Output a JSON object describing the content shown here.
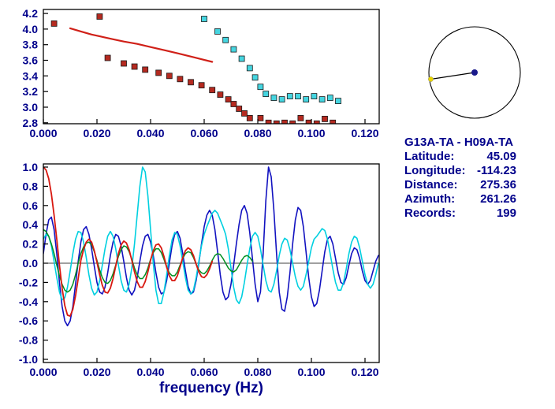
{
  "colors": {
    "background": "#ffffff",
    "frame": "#000000",
    "text": "#00008b"
  },
  "station_info": {
    "title": "G13A-TA - H09A-TA",
    "rows": [
      {
        "label": "Latitude:",
        "value": "45.09"
      },
      {
        "label": "Longitude:",
        "value": "-114.23"
      },
      {
        "label": "Distance:",
        "value": "275.36"
      },
      {
        "label": "Azimuth:",
        "value": "261.26"
      },
      {
        "label": "Records:",
        "value": "199"
      }
    ]
  },
  "azimuth_diagram": {
    "azimuth_deg": 261.26,
    "circle_color": "#000000",
    "center_dot_color": "#1a1a8c",
    "edge_dot_color": "#e8d400"
  },
  "chart_data": [
    {
      "id": "phase-velocity-dispersion",
      "type": "scatter",
      "title": "",
      "xlabel": "",
      "ylabel": "",
      "xlim": [
        0,
        0.1253
      ],
      "ylim": [
        2.788,
        4.251
      ],
      "xticks": [
        0,
        0.02,
        0.04,
        0.06,
        0.08,
        0.1,
        0.12
      ],
      "xtick_labels": [
        "0.000",
        "0.020",
        "0.040",
        "0.060",
        "0.080",
        "0.100",
        "0.120"
      ],
      "yticks": [
        2.8,
        3.0,
        3.2,
        3.4,
        3.6,
        3.8,
        4.0,
        4.2
      ],
      "ytick_labels": [
        "2.8",
        "3.0",
        "3.2",
        "3.4",
        "3.6",
        "3.8",
        "4.0",
        "4.2"
      ],
      "series": [
        {
          "name": "red-curve",
          "style": "line",
          "color": "#d02018",
          "width": 2.2,
          "points": [
            [
              0.01,
              4.01
            ],
            [
              0.014,
              3.97
            ],
            [
              0.018,
              3.93
            ],
            [
              0.022,
              3.9
            ],
            [
              0.026,
              3.87
            ],
            [
              0.03,
              3.84
            ],
            [
              0.035,
              3.81
            ],
            [
              0.04,
              3.77
            ],
            [
              0.045,
              3.73
            ],
            [
              0.05,
              3.69
            ],
            [
              0.056,
              3.64
            ],
            [
              0.063,
              3.58
            ]
          ]
        },
        {
          "name": "red-squares",
          "style": "scatter",
          "color": "#b52a20",
          "points": [
            [
              0.004,
              4.07
            ],
            [
              0.021,
              4.16
            ],
            [
              0.024,
              3.63
            ],
            [
              0.03,
              3.56
            ],
            [
              0.034,
              3.52
            ],
            [
              0.038,
              3.48
            ],
            [
              0.043,
              3.44
            ],
            [
              0.047,
              3.4
            ],
            [
              0.051,
              3.36
            ],
            [
              0.055,
              3.32
            ],
            [
              0.059,
              3.28
            ],
            [
              0.063,
              3.22
            ],
            [
              0.066,
              3.16
            ],
            [
              0.069,
              3.1
            ],
            [
              0.071,
              3.04
            ],
            [
              0.073,
              2.98
            ],
            [
              0.075,
              2.92
            ],
            [
              0.077,
              2.86
            ],
            [
              0.078,
              2.73
            ],
            [
              0.081,
              2.86
            ],
            [
              0.084,
              2.8
            ],
            [
              0.087,
              2.79
            ],
            [
              0.09,
              2.8
            ],
            [
              0.093,
              2.79
            ],
            [
              0.096,
              2.86
            ],
            [
              0.099,
              2.8
            ],
            [
              0.102,
              2.79
            ],
            [
              0.105,
              2.85
            ],
            [
              0.108,
              2.8
            ]
          ]
        },
        {
          "name": "cyan-squares",
          "style": "scatter",
          "color": "#45d5e0",
          "points": [
            [
              0.06,
              4.13
            ],
            [
              0.065,
              3.97
            ],
            [
              0.068,
              3.86
            ],
            [
              0.071,
              3.74
            ],
            [
              0.074,
              3.62
            ],
            [
              0.077,
              3.5
            ],
            [
              0.079,
              3.38
            ],
            [
              0.081,
              3.26
            ],
            [
              0.083,
              3.17
            ],
            [
              0.086,
              3.12
            ],
            [
              0.089,
              3.1
            ],
            [
              0.092,
              3.14
            ],
            [
              0.095,
              3.14
            ],
            [
              0.098,
              3.1
            ],
            [
              0.101,
              3.14
            ],
            [
              0.104,
              3.1
            ],
            [
              0.107,
              3.12
            ],
            [
              0.11,
              3.08
            ]
          ]
        }
      ]
    },
    {
      "id": "normalized-cross-spectra",
      "type": "line",
      "title": "",
      "xlabel": "frequency (Hz)",
      "ylabel": "",
      "zero_line": true,
      "xlim": [
        0,
        0.1253
      ],
      "ylim": [
        -1.033,
        1.033
      ],
      "xticks": [
        0,
        0.02,
        0.04,
        0.06,
        0.08,
        0.1,
        0.12
      ],
      "xtick_labels": [
        "0.000",
        "0.020",
        "0.040",
        "0.060",
        "0.080",
        "0.100",
        "0.120"
      ],
      "yticks": [
        1.0,
        0.8,
        0.6,
        0.4,
        0.2,
        0.0,
        -0.2,
        -0.4,
        -0.6,
        -0.8,
        -1.0
      ],
      "ytick_labels": [
        "1.0",
        "0.8",
        "0.6",
        "0.4",
        "0.2",
        "0.0",
        "-0.2",
        "-0.4",
        "-0.6",
        "-0.8",
        "-1.0"
      ],
      "series": [
        {
          "name": "navy-trace",
          "style": "line",
          "color": "#1212c0",
          "width": 1.6,
          "x_start": 0,
          "dx": 0.001,
          "values": [
            0.1,
            0.3,
            0.45,
            0.48,
            0.35,
            0.1,
            -0.2,
            -0.45,
            -0.6,
            -0.65,
            -0.6,
            -0.45,
            -0.22,
            0.02,
            0.22,
            0.35,
            0.38,
            0.3,
            0.15,
            -0.03,
            -0.2,
            -0.3,
            -0.32,
            -0.25,
            -0.1,
            0.08,
            0.22,
            0.3,
            0.28,
            0.18,
            0.02,
            -0.15,
            -0.28,
            -0.33,
            -0.28,
            -0.15,
            0.02,
            0.18,
            0.28,
            0.3,
            0.22,
            0.08,
            -0.1,
            -0.25,
            -0.32,
            -0.3,
            -0.18,
            0.0,
            0.18,
            0.3,
            0.33,
            0.26,
            0.1,
            -0.08,
            -0.24,
            -0.32,
            -0.3,
            -0.18,
            0.0,
            0.2,
            0.38,
            0.5,
            0.55,
            0.5,
            0.35,
            0.12,
            -0.12,
            -0.3,
            -0.38,
            -0.35,
            -0.22,
            -0.02,
            0.2,
            0.4,
            0.55,
            0.6,
            0.52,
            0.32,
            0.05,
            -0.22,
            -0.4,
            -0.3,
            0.1,
            0.65,
            1.0,
            0.9,
            0.55,
            0.1,
            -0.3,
            -0.48,
            -0.5,
            -0.35,
            -0.1,
            0.2,
            0.45,
            0.58,
            0.55,
            0.38,
            0.12,
            -0.15,
            -0.35,
            -0.45,
            -0.42,
            -0.28,
            -0.08,
            0.12,
            0.25,
            0.28,
            0.2,
            0.05,
            -0.1,
            -0.2,
            -0.22,
            -0.15,
            -0.02,
            0.1,
            0.16,
            0.14,
            0.05,
            -0.08,
            -0.18,
            -0.22,
            -0.18,
            -0.08,
            0.02,
            0.08
          ]
        },
        {
          "name": "cyan-trace",
          "style": "line",
          "color": "#00d0e0",
          "width": 1.6,
          "x_start": 0,
          "dx": 0.001,
          "values": [
            0.25,
            0.3,
            0.28,
            0.18,
            0.02,
            -0.15,
            -0.3,
            -0.38,
            -0.36,
            -0.25,
            -0.08,
            0.1,
            0.25,
            0.33,
            0.32,
            0.22,
            0.06,
            -0.12,
            -0.26,
            -0.33,
            -0.3,
            -0.18,
            -0.02,
            0.15,
            0.28,
            0.33,
            0.28,
            0.15,
            -0.02,
            -0.18,
            -0.28,
            -0.3,
            -0.22,
            -0.05,
            0.2,
            0.5,
            0.8,
            1.0,
            0.95,
            0.7,
            0.35,
            0.0,
            -0.28,
            -0.42,
            -0.42,
            -0.3,
            -0.12,
            0.08,
            0.24,
            0.32,
            0.3,
            0.18,
            0.02,
            -0.15,
            -0.28,
            -0.32,
            -0.28,
            -0.15,
            0.02,
            0.18,
            0.3,
            0.38,
            0.45,
            0.52,
            0.55,
            0.52,
            0.45,
            0.38,
            0.3,
            0.15,
            -0.05,
            -0.25,
            -0.38,
            -0.42,
            -0.35,
            -0.2,
            -0.02,
            0.15,
            0.28,
            0.32,
            0.28,
            0.15,
            -0.02,
            -0.18,
            -0.28,
            -0.3,
            -0.22,
            -0.08,
            0.08,
            0.2,
            0.26,
            0.24,
            0.14,
            0.0,
            -0.14,
            -0.24,
            -0.28,
            -0.24,
            -0.12,
            0.02,
            0.16,
            0.25,
            0.28,
            0.32,
            0.36,
            0.34,
            0.25,
            0.1,
            -0.06,
            -0.2,
            -0.28,
            -0.28,
            -0.2,
            -0.06,
            0.1,
            0.22,
            0.28,
            0.26,
            0.16,
            0.02,
            -0.12,
            -0.22,
            -0.26,
            -0.22,
            -0.12,
            0.0
          ]
        },
        {
          "name": "green-trace",
          "style": "line",
          "color": "#009020",
          "width": 1.5,
          "x_start": 0,
          "dx": 0.001,
          "values": [
            0.35,
            0.33,
            0.28,
            0.2,
            0.1,
            -0.02,
            -0.13,
            -0.22,
            -0.28,
            -0.3,
            -0.28,
            -0.22,
            -0.12,
            0.0,
            0.1,
            0.17,
            0.21,
            0.22,
            0.19,
            0.12,
            0.03,
            -0.07,
            -0.15,
            -0.2,
            -0.21,
            -0.18,
            -0.11,
            -0.02,
            0.07,
            0.14,
            0.18,
            0.17,
            0.12,
            0.04,
            -0.05,
            -0.12,
            -0.16,
            -0.16,
            -0.12,
            -0.05,
            0.04,
            0.11,
            0.15,
            0.15,
            0.11,
            0.04,
            -0.04,
            -0.1,
            -0.13,
            -0.13,
            -0.09,
            -0.02,
            0.05,
            0.1,
            0.12,
            0.11,
            0.06,
            -0.01,
            -0.07,
            -0.1,
            -0.11,
            -0.08,
            -0.03,
            0.03,
            0.08,
            0.1,
            0.09,
            0.05,
            0.0,
            -0.05,
            -0.08,
            -0.09,
            -0.07,
            -0.02,
            0.03,
            0.07,
            0.08,
            0.06,
            0.02
          ]
        },
        {
          "name": "red-trace",
          "style": "line",
          "color": "#d81810",
          "width": 1.8,
          "x_start": 0,
          "dx": 0.001,
          "values": [
            1.0,
            0.97,
            0.88,
            0.72,
            0.5,
            0.25,
            -0.02,
            -0.26,
            -0.44,
            -0.54,
            -0.55,
            -0.48,
            -0.34,
            -0.16,
            0.03,
            0.14,
            0.22,
            0.25,
            0.22,
            0.13,
            0.01,
            -0.12,
            -0.23,
            -0.3,
            -0.31,
            -0.26,
            -0.16,
            -0.03,
            0.1,
            0.19,
            0.23,
            0.21,
            0.14,
            0.03,
            -0.09,
            -0.19,
            -0.25,
            -0.25,
            -0.19,
            -0.09,
            0.03,
            0.13,
            0.19,
            0.2,
            0.16,
            0.07,
            -0.04,
            -0.13,
            -0.18,
            -0.18,
            -0.13,
            -0.04,
            0.06,
            0.13,
            0.16,
            0.14,
            0.08,
            -0.01,
            -0.09,
            -0.14,
            -0.15,
            -0.12,
            -0.06,
            0.02
          ]
        }
      ]
    }
  ]
}
